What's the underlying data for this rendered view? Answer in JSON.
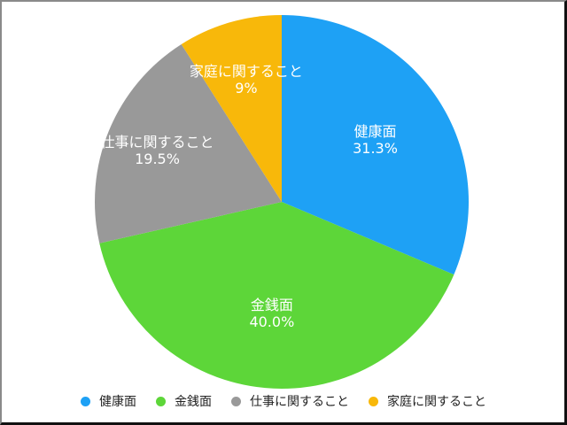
{
  "chart_data": {
    "type": "pie",
    "title": "",
    "categories": [
      "健康面",
      "金銭面",
      "仕事に関すること",
      "家庭に関すること"
    ],
    "values": [
      31.3,
      40.0,
      19.5,
      9
    ],
    "value_labels": [
      "31.3%",
      "40.0%",
      "19.5%",
      "9%"
    ],
    "colors": [
      "#1ea1f5",
      "#5dd639",
      "#999999",
      "#f8b80a"
    ],
    "start_angle": "12 o'clock",
    "direction": "clockwise",
    "legend_position": "bottom"
  },
  "legend": {
    "items": [
      {
        "label": "健康面",
        "color": "#1ea1f5"
      },
      {
        "label": "金銭面",
        "color": "#5dd639"
      },
      {
        "label": "仕事に関すること",
        "color": "#999999"
      },
      {
        "label": "家庭に関すること",
        "color": "#f8b80a"
      }
    ]
  }
}
